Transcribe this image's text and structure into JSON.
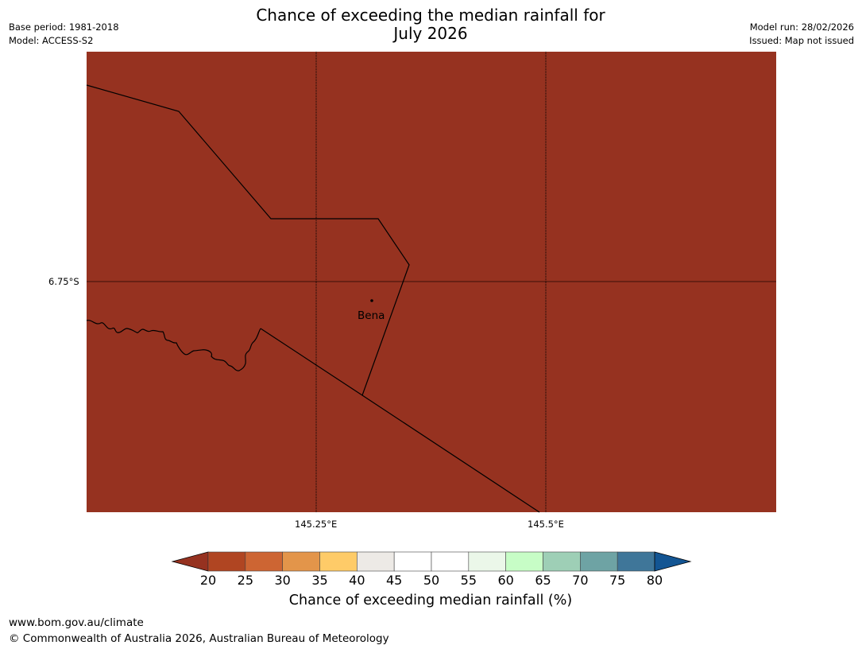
{
  "header": {
    "title_line1": "Chance of exceeding the median rainfall for",
    "title_line2": "July 2026",
    "base_period": "Base period: 1981-2018",
    "model": "Model: ACCESS-S2",
    "model_run": "Model run: 28/02/2026",
    "issued": "Issued: Map not issued"
  },
  "map": {
    "fill_color": "#963220",
    "line_color": "#000000",
    "grid": {
      "latitude_labels": [
        "6.75°S"
      ],
      "longitude_labels": [
        "145.25°E",
        "145.5°E"
      ]
    },
    "places": [
      {
        "name": "Bena"
      }
    ]
  },
  "colorbar": {
    "label": "Chance of exceeding median rainfall (%)",
    "ticks": [
      "20",
      "25",
      "30",
      "35",
      "40",
      "45",
      "50",
      "55",
      "60",
      "65",
      "70",
      "75",
      "80"
    ],
    "under_color": "#963220",
    "over_color": "#135593",
    "colors": [
      "#b04522",
      "#cd6533",
      "#e3954a",
      "#fecb68",
      "#edeae6",
      "#ffffff",
      "#ffffff",
      "#ebf7e9",
      "#c7fdc6",
      "#9ecfb6",
      "#6ea3a4",
      "#3f7699"
    ]
  },
  "footer": {
    "url": "www.bom.gov.au/climate",
    "copyright": "© Commonwealth of Australia 2026, Australian Bureau of Meteorology"
  }
}
